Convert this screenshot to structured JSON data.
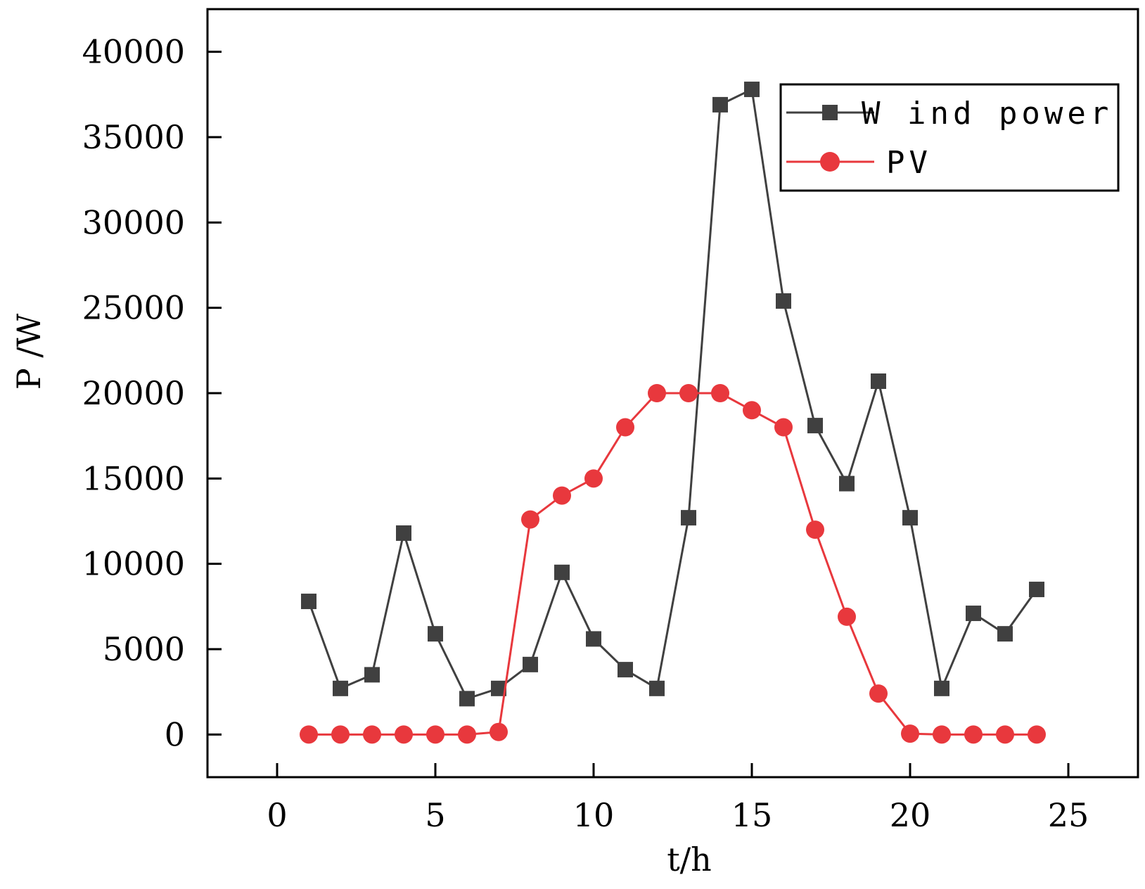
{
  "chart_data": {
    "type": "line",
    "title": "",
    "xlabel": "t/h",
    "ylabel": "P /W",
    "xlim": [
      -2.2,
      27.2
    ],
    "ylim": [
      -2500,
      42500
    ],
    "xticks": [
      0,
      5,
      10,
      15,
      20,
      25
    ],
    "yticks": [
      0,
      5000,
      10000,
      15000,
      20000,
      25000,
      30000,
      35000,
      40000
    ],
    "xtick_labels": [
      "0",
      "5",
      "10",
      "15",
      "20",
      "25"
    ],
    "ytick_labels": [
      "0",
      "5000",
      "10000",
      "15000",
      "20000",
      "25000",
      "30000",
      "35000",
      "40000"
    ],
    "grid": false,
    "legend_position": "top-right",
    "x": [
      1,
      2,
      3,
      4,
      5,
      6,
      7,
      8,
      9,
      10,
      11,
      12,
      13,
      14,
      15,
      16,
      17,
      18,
      19,
      20,
      21,
      22,
      23,
      24
    ],
    "series": [
      {
        "name": "W ind power",
        "color": "#404040",
        "marker": "square",
        "values": [
          7800,
          2700,
          3500,
          11800,
          5900,
          2100,
          2700,
          4100,
          9500,
          5600,
          3800,
          2700,
          12700,
          36900,
          37800,
          25400,
          18100,
          14700,
          20700,
          12700,
          2700,
          7100,
          5900,
          8500
        ]
      },
      {
        "name": "PV",
        "color": "#e8383d",
        "marker": "circle",
        "values": [
          0,
          0,
          0,
          0,
          0,
          0,
          150,
          12600,
          14000,
          15000,
          18000,
          20000,
          20000,
          20000,
          19000,
          18000,
          12000,
          6900,
          2400,
          50,
          0,
          0,
          0,
          0
        ]
      }
    ]
  }
}
